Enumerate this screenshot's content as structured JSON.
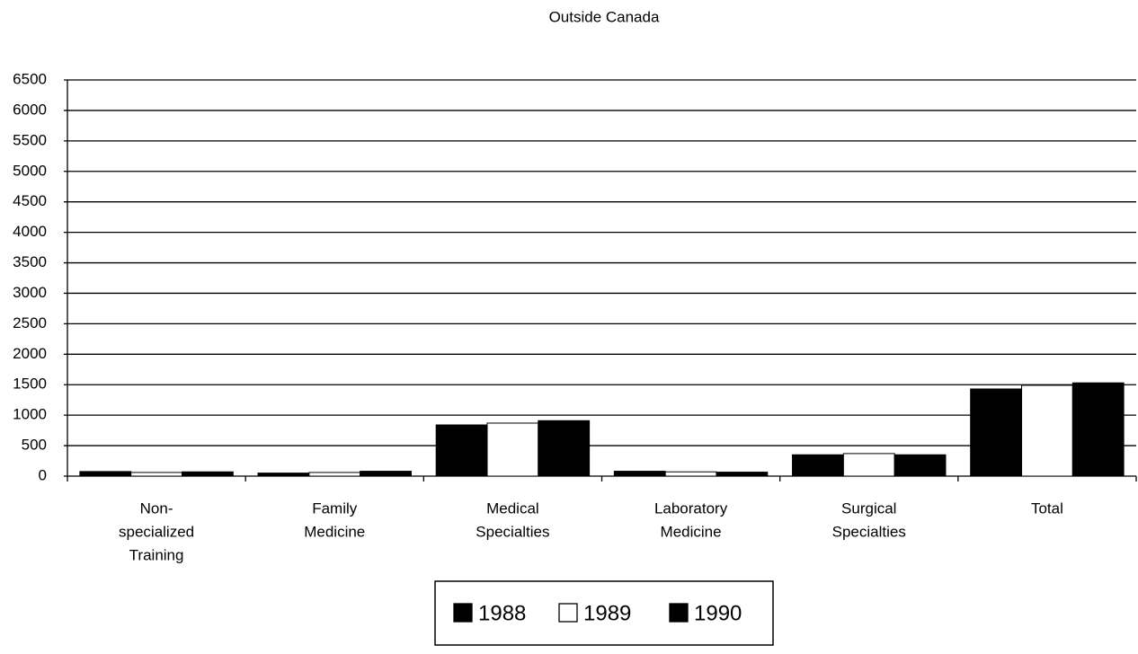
{
  "chart_data": {
    "type": "bar",
    "title": "Outside Canada",
    "categories": [
      [
        "Non-",
        "specialized",
        "Training"
      ],
      [
        "Family",
        "Medicine"
      ],
      [
        "Medical",
        "Specialties"
      ],
      [
        "Laboratory",
        "Medicine"
      ],
      [
        "Surgical",
        "Specialties"
      ],
      [
        "Total"
      ]
    ],
    "series": [
      {
        "name": "1988",
        "color": "#000000",
        "values": [
          75,
          50,
          840,
          80,
          350,
          1430
        ]
      },
      {
        "name": "1989",
        "color": "#ffffff",
        "values": [
          60,
          60,
          870,
          70,
          370,
          1490
        ]
      },
      {
        "name": "1990",
        "color": "#000000",
        "values": [
          70,
          80,
          910,
          65,
          350,
          1530
        ]
      }
    ],
    "ylim": [
      0,
      6500
    ],
    "yticks": [
      0,
      500,
      1000,
      1500,
      2000,
      2500,
      3000,
      3500,
      4000,
      4500,
      5000,
      5500,
      6000,
      6500
    ],
    "grid": true,
    "legend": "bottom"
  }
}
